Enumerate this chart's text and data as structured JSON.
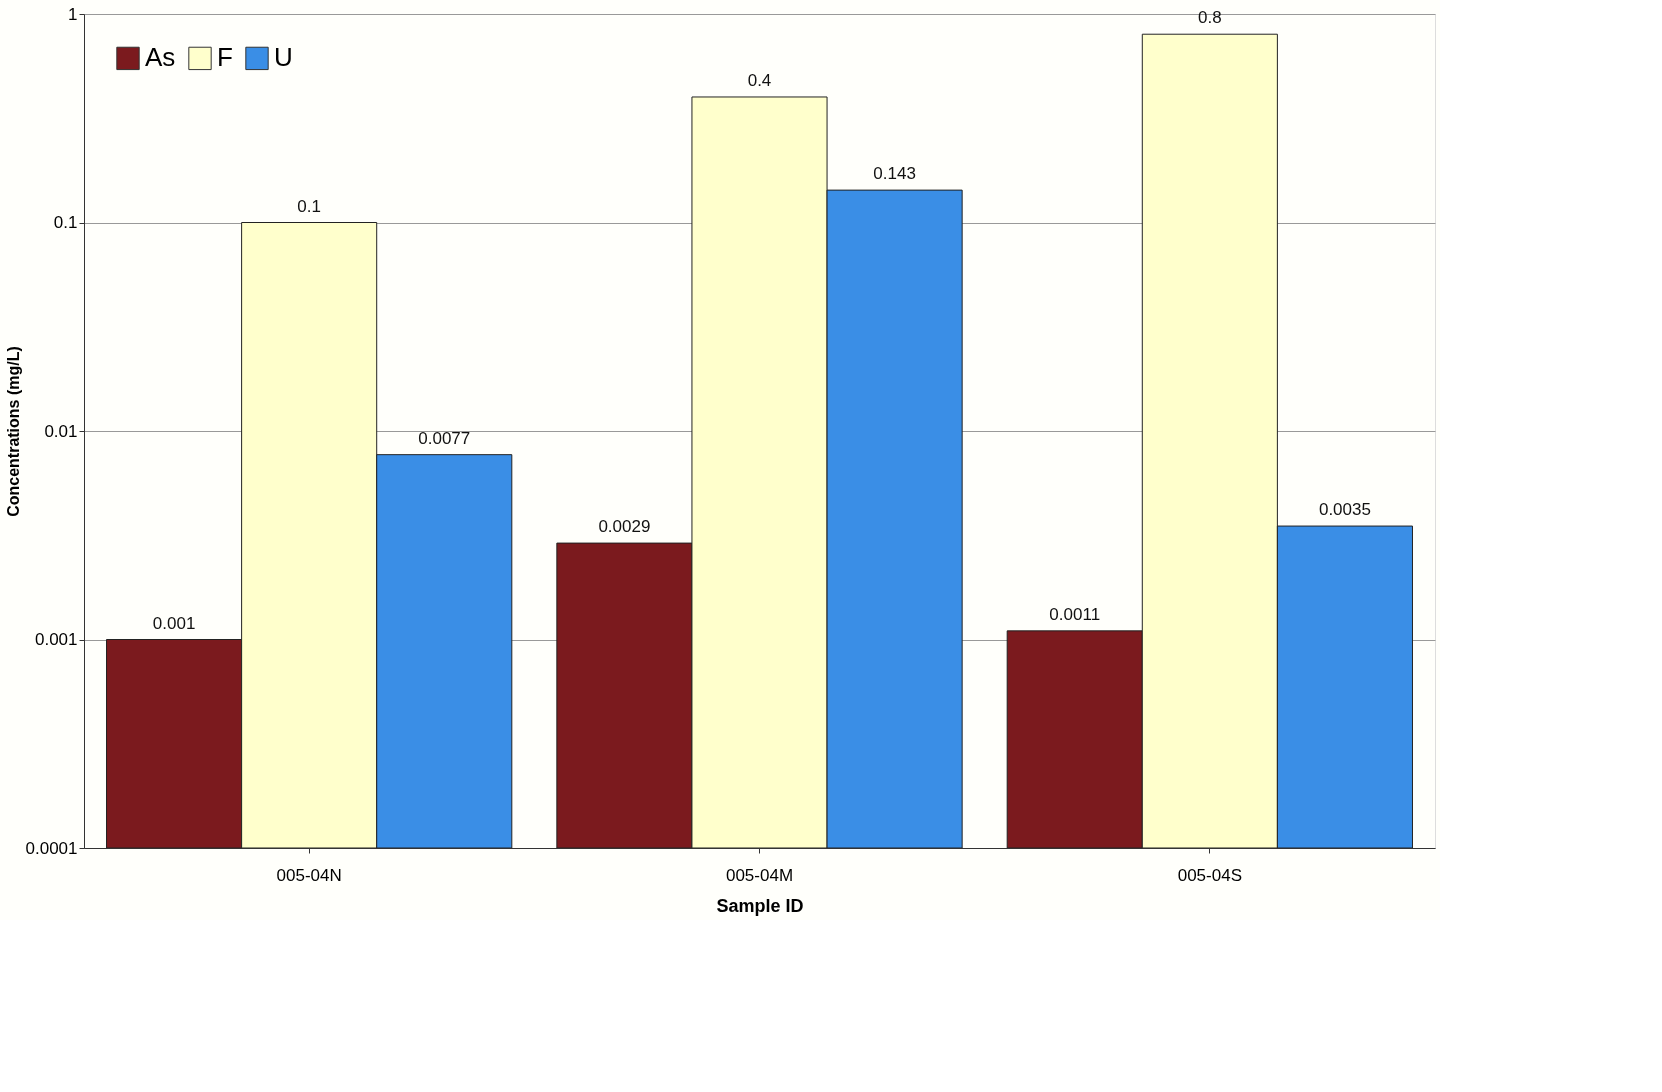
{
  "chart_data": {
    "type": "bar",
    "xlabel": "Sample ID",
    "ylabel": "Concentrations (mg/L)",
    "categories": [
      "005-04N",
      "005-04M",
      "005-04S"
    ],
    "series": [
      {
        "name": "As",
        "color": "#7b1a1e",
        "values": [
          0.001,
          0.0029,
          0.0011
        ]
      },
      {
        "name": "F",
        "color": "#ffffcc",
        "values": [
          0.1,
          0.4,
          0.8
        ]
      },
      {
        "name": "U",
        "color": "#3a8ee6",
        "values": [
          0.0077,
          0.143,
          0.0035
        ]
      }
    ],
    "log": "y",
    "ylim": [
      0.0001,
      1
    ],
    "yticks": [
      0.0001,
      0.001,
      0.01,
      0.1,
      1
    ],
    "grid": "y",
    "legend": "top left",
    "data_labels": true
  }
}
